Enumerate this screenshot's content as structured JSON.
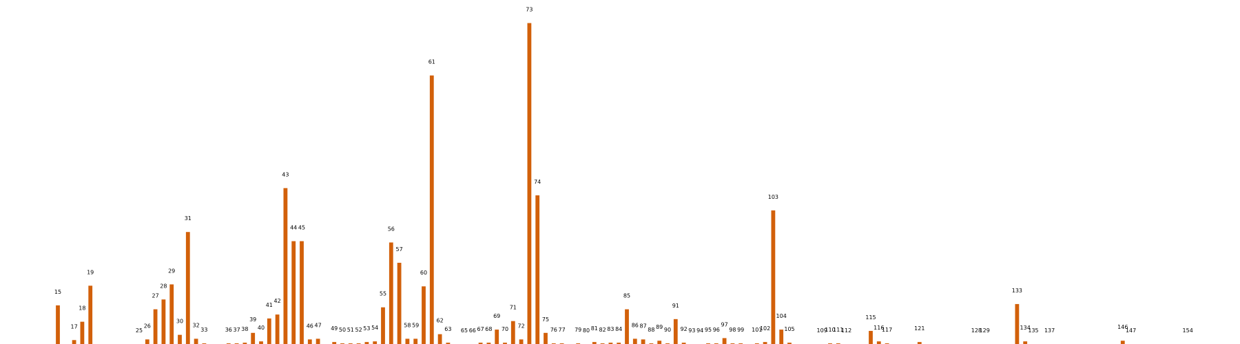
{
  "chart_data": {
    "type": "bar",
    "title": "",
    "xlabel": "",
    "ylabel": "",
    "grid": false,
    "axes_visible": false,
    "bar_color": "#d2600a",
    "categories": [
      "15",
      "17",
      "18",
      "19",
      "25",
      "26",
      "27",
      "28",
      "29",
      "30",
      "31",
      "32",
      "33",
      "36",
      "37",
      "38",
      "39",
      "40",
      "41",
      "42",
      "43",
      "44",
      "45",
      "46",
      "47",
      "49",
      "50",
      "51",
      "52",
      "53",
      "54",
      "55",
      "56",
      "57",
      "58",
      "59",
      "60",
      "61",
      "62",
      "63",
      "65",
      "66",
      "67",
      "68",
      "69",
      "70",
      "71",
      "72",
      "73",
      "74",
      "75",
      "76",
      "77",
      "79",
      "80",
      "81",
      "82",
      "83",
      "84",
      "85",
      "86",
      "87",
      "88",
      "89",
      "90",
      "91",
      "92",
      "93",
      "94",
      "95",
      "96",
      "97",
      "98",
      "99",
      "101",
      "102",
      "103",
      "104",
      "105",
      "109",
      "110",
      "111",
      "112",
      "115",
      "116",
      "117",
      "121",
      "128",
      "129",
      "133",
      "134",
      "135",
      "137",
      "146",
      "147",
      "154"
    ],
    "values": [
      5.9,
      0.6,
      3.4,
      8.9,
      0,
      0.7,
      5.3,
      6.8,
      9.1,
      1.4,
      17.1,
      0.8,
      0.1,
      0.1,
      0.1,
      0.2,
      1.7,
      0.4,
      3.9,
      4.5,
      23.8,
      15.7,
      15.7,
      0.7,
      0.8,
      0.3,
      0.1,
      0.1,
      0.1,
      0.3,
      0.4,
      5.6,
      15.5,
      12.4,
      0.8,
      0.8,
      8.8,
      41,
      1.5,
      0.2,
      0,
      0,
      0.2,
      0.2,
      2.2,
      0.2,
      3.5,
      0.7,
      49,
      22.7,
      1.7,
      0.1,
      0.1,
      0.1,
      0,
      0.3,
      0.1,
      0.2,
      0.2,
      5.3,
      0.8,
      0.7,
      0.1,
      0.5,
      0.1,
      3.8,
      0.2,
      0,
      0,
      0.1,
      0.1,
      0.9,
      0.1,
      0.1,
      0.1,
      0.3,
      20.4,
      2.2,
      0.2,
      0,
      0.1,
      0.1,
      0,
      2,
      0.4,
      0.1,
      0.3,
      0,
      0,
      6.1,
      0.4,
      0,
      0,
      0.5,
      0,
      0
    ],
    "ylim": [
      0,
      50
    ]
  }
}
